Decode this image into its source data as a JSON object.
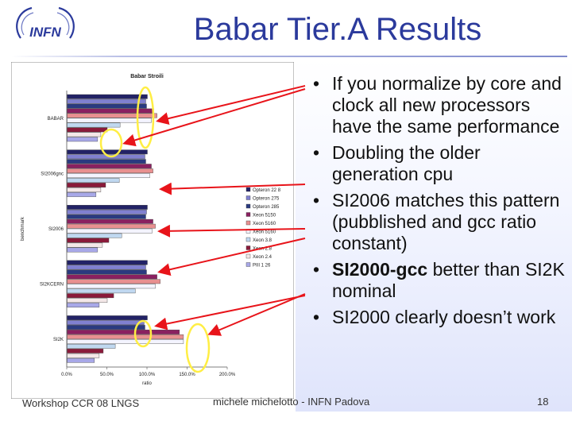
{
  "slide": {
    "title": "Babar Tier.A Results",
    "logo_text": "INFN",
    "bullets": [
      {
        "text": "If you normalize by core and clock all new processors have the same performance"
      },
      {
        "text": "Doubling the older generation cpu"
      },
      {
        "text": "SI2006 matches this pattern (pubblished and gcc ratio constant)"
      },
      {
        "bold": "SI2000-gcc",
        "text": " better than SI2K nominal"
      },
      {
        "text": "SI2000 clearly doesn’t work"
      }
    ],
    "footer_left": "Workshop CCR 08 LNGS",
    "footer_center": "michele michelotto - INFN Padova",
    "page_number": "18"
  },
  "colors": {
    "title": "#2b3a9c",
    "arrow": "#e8141a",
    "highlight": "#ffee44"
  },
  "chart_data": {
    "type": "bar",
    "orientation": "horizontal",
    "title": "Babar Stroili",
    "xlabel": "ratio",
    "ylabel": "benchmark",
    "categories": [
      "BABAR",
      "SI2006gnc",
      "SI2006",
      "SI2KCERN",
      "SI2K"
    ],
    "xlim": [
      0,
      200
    ],
    "xticks": [
      "0.0%",
      "50.0%",
      "100.0%",
      "150.0%",
      "200.0%"
    ],
    "grid": false,
    "legend_position": "right",
    "series": [
      {
        "name": "Opteron 22 8",
        "color": "#222266",
        "values": [
          100,
          100,
          100,
          100,
          100
        ]
      },
      {
        "name": "Opteron 275",
        "color": "#8080d0",
        "values": [
          98,
          97,
          99,
          98,
          96
        ]
      },
      {
        "name": "Opteron 285",
        "color": "#2a3a80",
        "values": [
          99,
          98,
          98,
          99,
          97
        ]
      },
      {
        "name": "Xeon 5150",
        "color": "#8a2060",
        "values": [
          108,
          105,
          107,
          112,
          140
        ]
      },
      {
        "name": "Xeon 5160",
        "color": "#e89090",
        "values": [
          112,
          107,
          110,
          116,
          145
        ]
      },
      {
        "name": "Xeon 5160",
        "color": "#f4f4ff",
        "values": [
          105,
          103,
          106,
          110,
          145
        ]
      },
      {
        "name": "Xeon 3.8",
        "color": "#c0d8f0",
        "values": [
          66,
          65,
          68,
          85,
          60
        ]
      },
      {
        "name": "Xeon 2.8",
        "color": "#8a1a3a",
        "values": [
          50,
          48,
          52,
          58,
          45
        ]
      },
      {
        "name": "Xeon 2.4",
        "color": "#f4e8e8",
        "values": [
          42,
          42,
          44,
          50,
          40
        ]
      },
      {
        "name": "PIII 1 26",
        "color": "#a8a8e8",
        "values": [
          38,
          36,
          38,
          40,
          34
        ]
      }
    ]
  }
}
